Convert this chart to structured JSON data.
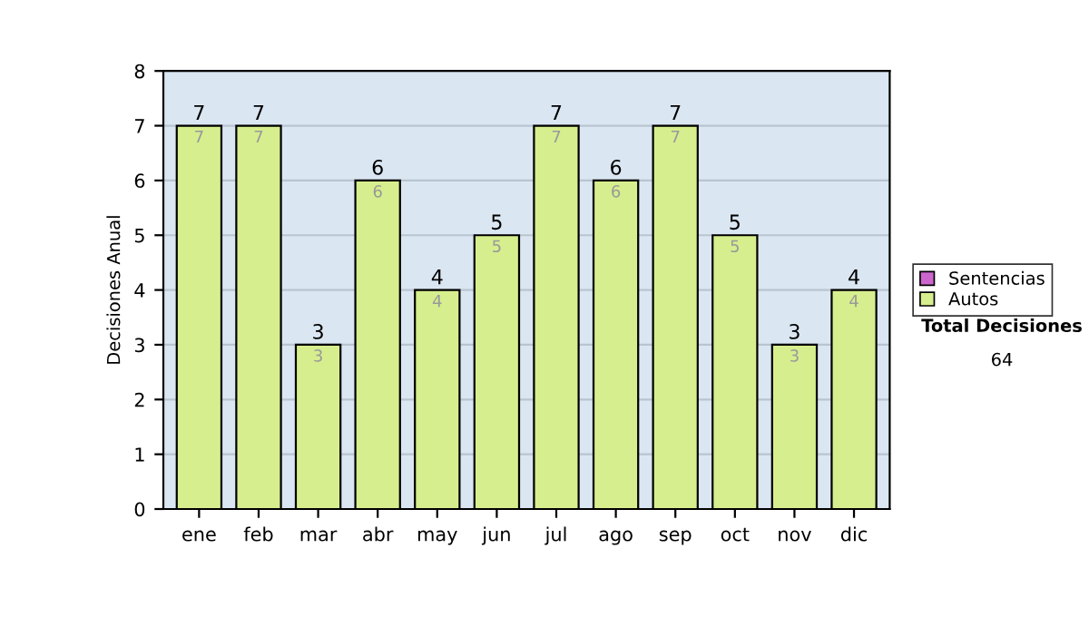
{
  "chart_data": {
    "type": "bar",
    "ylabel": "Decisiones Anual",
    "categories": [
      "ene",
      "feb",
      "mar",
      "abr",
      "may",
      "jun",
      "jul",
      "ago",
      "sep",
      "oct",
      "nov",
      "dic"
    ],
    "series": [
      {
        "name": "Sentencias",
        "color": "#cc66cc",
        "values": [
          0,
          0,
          0,
          0,
          0,
          0,
          0,
          0,
          0,
          0,
          0,
          0
        ]
      },
      {
        "name": "Autos",
        "color": "#d6ee8e",
        "values": [
          7,
          7,
          3,
          6,
          4,
          5,
          7,
          6,
          7,
          5,
          3,
          4
        ],
        "value_labels": [
          "7",
          "7",
          "3",
          "6",
          "4",
          "5",
          "7",
          "6",
          "7",
          "5",
          "3",
          "4"
        ]
      }
    ],
    "stacked": true,
    "totals": [
      "7",
      "7",
      "3",
      "6",
      "4",
      "5",
      "7",
      "6",
      "7",
      "5",
      "3",
      "4"
    ],
    "ylim": [
      0,
      8
    ],
    "yticks": [
      0,
      1,
      2,
      3,
      4,
      5,
      6,
      7,
      8
    ],
    "grid": "y",
    "legend": "right",
    "annotations": [
      "Total Decisiones",
      "64"
    ]
  }
}
